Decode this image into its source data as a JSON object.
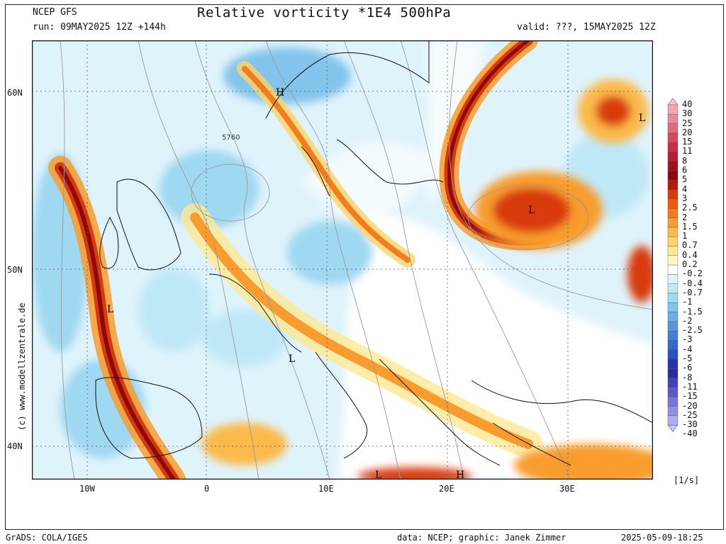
{
  "header": {
    "model": "NCEP GFS",
    "title": "Relative vorticity *1E4 500hPa",
    "run": "run: 09MAY2025 12Z +144h",
    "valid": "valid: ???, 15MAY2025 12Z"
  },
  "side_credit": "(c) www.modellzentrale.de",
  "map": {
    "lat_labels": [
      "60N",
      "50N",
      "40N"
    ],
    "lon_labels": [
      "10W",
      "0",
      "10E",
      "20E",
      "30E"
    ],
    "contour_label": "5760",
    "markers": [
      "H",
      "L",
      "L",
      "L",
      "L",
      "L",
      "H",
      "L"
    ]
  },
  "colorbar": {
    "labels": [
      "40",
      "30",
      "25",
      "20",
      "15",
      "11",
      "8",
      "6",
      "5",
      "4",
      "3",
      "2.5",
      "2",
      "1.5",
      "1",
      "0.7",
      "0.4",
      "0.2",
      "-0.2",
      "-0.4",
      "-0.7",
      "-1",
      "-1.5",
      "-2",
      "-2.5",
      "-3",
      "-4",
      "-5",
      "-6",
      "-8",
      "-11",
      "-15",
      "-20",
      "-25",
      "-30",
      "-40"
    ],
    "colors": [
      "#f7c9cf",
      "#f2a7b2",
      "#ea8a98",
      "#e06a7e",
      "#d54a5f",
      "#c73049",
      "#b51f35",
      "#a0101f",
      "#8b0a12",
      "#b31a0a",
      "#d93a0a",
      "#ee5a0c",
      "#f57c1a",
      "#f89c2e",
      "#fbba48",
      "#fdd36b",
      "#fee894",
      "#fff6c3",
      "#ffffff",
      "#ddf3fb",
      "#bfe8f7",
      "#9fd8f1",
      "#82c4ec",
      "#6aaee6",
      "#5597df",
      "#4380d8",
      "#3568cf",
      "#2a50c2",
      "#1f36ad",
      "#2b2ca0",
      "#4540b5",
      "#5f58c8",
      "#7a74d8",
      "#958fe3",
      "#b0abec",
      "#cbc7f4"
    ],
    "unit": "[1/s]"
  },
  "footer": {
    "left": "GrADS: COLA/IGES",
    "right": "data: NCEP; graphic: Janek Zimmer",
    "timestamp": "2025-05-09-18:25"
  }
}
